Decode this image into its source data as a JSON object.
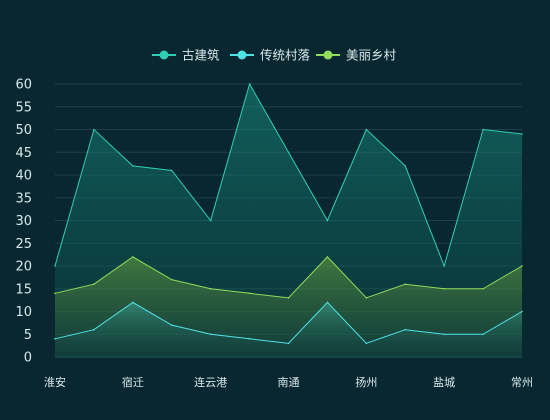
{
  "chart_data": {
    "type": "area",
    "categories": [
      "淮安",
      "",
      "宿迁",
      "",
      "连云港",
      "",
      "南通",
      "",
      "扬州",
      "",
      "盐城",
      "",
      "常州"
    ],
    "ylim": [
      0,
      60
    ],
    "yticks": [
      0,
      5,
      10,
      15,
      20,
      25,
      30,
      35,
      40,
      45,
      50,
      55,
      60
    ],
    "grid": true,
    "legend_position": "top-center",
    "series": [
      {
        "name": "古建筑",
        "color": "#2ecfb3",
        "values": [
          20,
          50,
          42,
          41,
          30,
          60,
          45,
          30,
          50,
          42,
          20,
          50,
          49
        ]
      },
      {
        "name": "传统村落",
        "color": "#4fe3e6",
        "values": [
          4,
          6,
          12,
          7,
          5,
          4,
          3,
          12,
          3,
          6,
          5,
          5,
          10
        ]
      },
      {
        "name": "美丽乡村",
        "color": "#8fdc5a",
        "values": [
          14,
          16,
          22,
          17,
          15,
          14,
          13,
          22,
          13,
          16,
          15,
          15,
          20
        ]
      }
    ]
  }
}
